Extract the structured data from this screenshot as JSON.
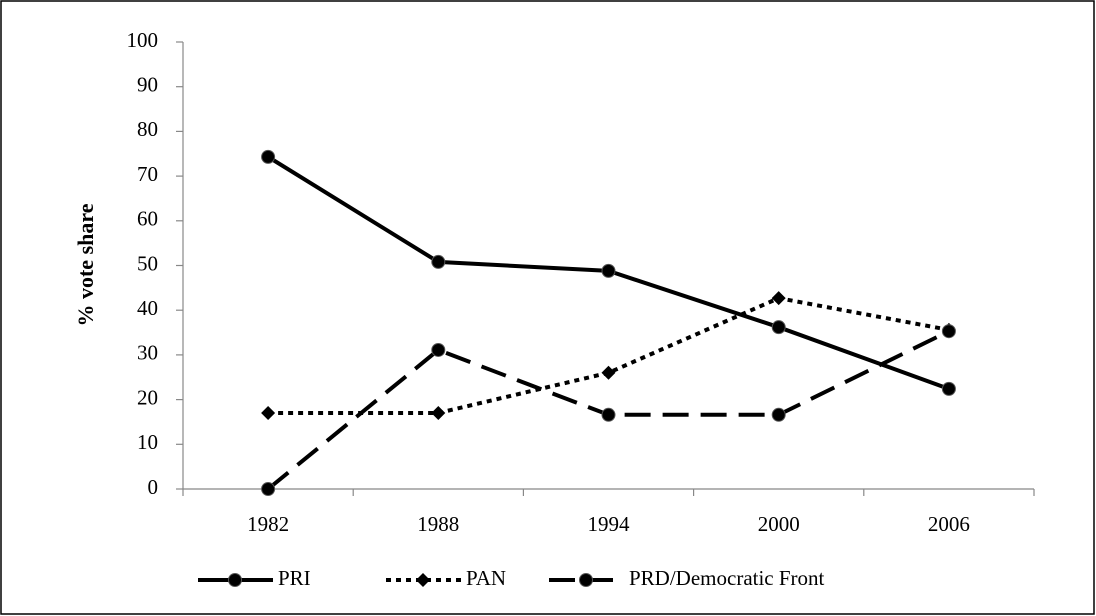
{
  "chart_data": {
    "type": "line",
    "y_label": "% vote share",
    "categories": [
      "1982",
      "1988",
      "1994",
      "2000",
      "2006"
    ],
    "series": [
      {
        "name": "PRI",
        "color": "#000000",
        "dash": "solid",
        "marker": "circle",
        "values": [
          74.3,
          50.8,
          48.8,
          36.2,
          22.4
        ]
      },
      {
        "name": "PAN",
        "color": "#000000",
        "dash": "dotted",
        "marker": "diamond",
        "values": [
          17,
          17,
          26,
          42.7,
          35.6
        ]
      },
      {
        "name": "PRD/Democratic Front",
        "color": "#000000",
        "dash": "dashed",
        "marker": "circle",
        "values": [
          0,
          31.1,
          16.6,
          16.6,
          35.3
        ]
      }
    ],
    "ylim": [
      0,
      100
    ],
    "yticks": [
      0,
      10,
      20,
      30,
      40,
      50,
      60,
      70,
      80,
      90,
      100
    ],
    "grid": false,
    "legend": "bottom"
  }
}
